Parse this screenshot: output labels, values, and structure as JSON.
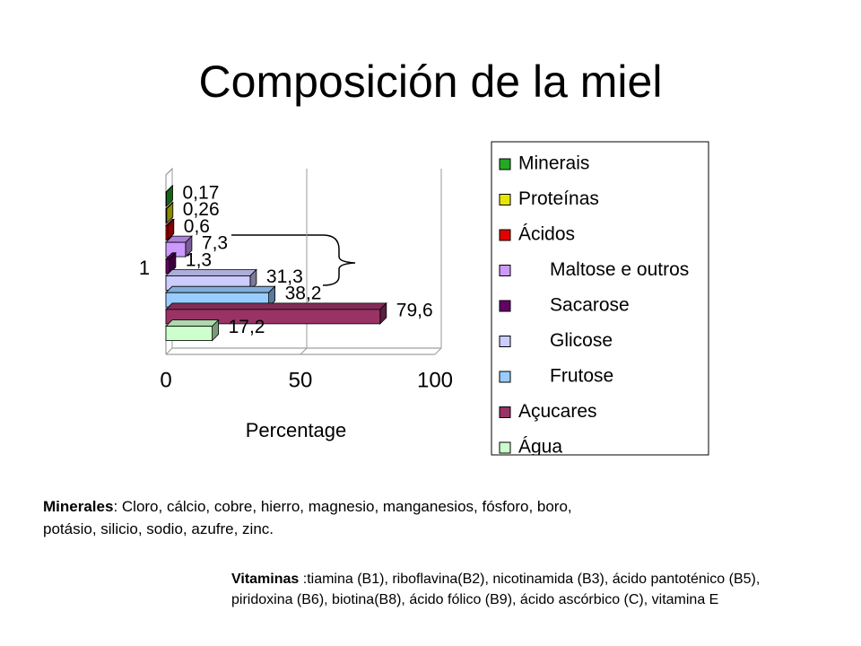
{
  "chart_data": {
    "type": "bar",
    "orientation": "horizontal",
    "title": "Composición de la miel",
    "categories": [
      "1"
    ],
    "series": [
      {
        "name": "Minerais",
        "color": "#22aa22",
        "values": [
          0.17
        ],
        "value_labels": [
          "0,17"
        ]
      },
      {
        "name": "Proteínas",
        "color": "#e6e600",
        "values": [
          0.26
        ],
        "value_labels": [
          "0,26"
        ]
      },
      {
        "name": "Ácidos",
        "color": "#e00000",
        "values": [
          0.6
        ],
        "value_labels": [
          "0,6"
        ]
      },
      {
        "name": "      Maltose e outros",
        "color": "#cc99ff",
        "values": [
          7.3
        ],
        "value_labels": [
          "7,3"
        ]
      },
      {
        "name": "      Sacarose",
        "color": "#660066",
        "values": [
          1.3
        ],
        "value_labels": [
          "1,3"
        ]
      },
      {
        "name": "      Glicose",
        "color": "#ccccff",
        "values": [
          31.3
        ],
        "value_labels": [
          "31,3"
        ]
      },
      {
        "name": "      Frutose",
        "color": "#99ccff",
        "values": [
          38.2
        ],
        "value_labels": [
          "38,2"
        ]
      },
      {
        "name": "Açucares",
        "color": "#993366",
        "values": [
          79.6
        ],
        "value_labels": [
          "79,6"
        ]
      },
      {
        "name": "Água",
        "color": "#ccffcc",
        "values": [
          17.2
        ],
        "value_labels": [
          "17,2"
        ]
      }
    ],
    "xlabel": "Percentage",
    "xlim": [
      0,
      100
    ],
    "xticks": [
      0,
      50,
      100
    ],
    "grid": true,
    "legend": "right"
  },
  "notes": {
    "minerals": {
      "label": "Minerales",
      "text": ": Cloro, cálcio, cobre, hierro, magnesio, manganesios, fósforo, boro, potásio, silicio, sodio, azufre, zinc."
    },
    "vitamins": {
      "label": "Vitaminas",
      "text": " :tiamina (B1), riboflavina(B2), nicotinamida (B3), ácido pantoténico (B5), piridoxina (B6), biotina(B8), ácido fólico (B9), ácido ascórbico (C), vitamina E"
    }
  }
}
